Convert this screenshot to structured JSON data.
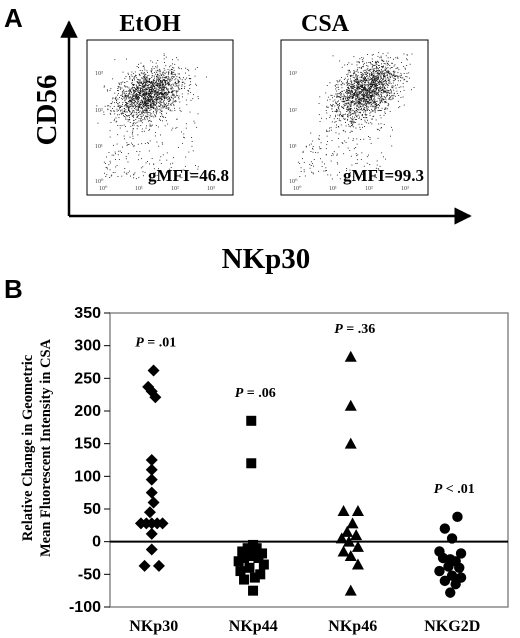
{
  "panel_a": {
    "letter": "A",
    "x_axis_label": "NKp30",
    "y_axis_label": "CD56",
    "plots": [
      {
        "condition": "EtOH",
        "gmfi_label": "gMFI=46.8",
        "x_ticks": [
          "10⁰",
          "10¹",
          "10²",
          "10³"
        ],
        "y_ticks": [
          "10⁰",
          "10¹",
          "10²",
          "10³"
        ]
      },
      {
        "condition": "CSA",
        "gmfi_label": "gMFI=99.3",
        "x_ticks": [
          "10⁰",
          "10¹",
          "10²",
          "10³"
        ],
        "y_ticks": [
          "10⁰",
          "10¹",
          "10²",
          "10³"
        ]
      }
    ]
  },
  "panel_b": {
    "letter": "B",
    "y_label_line1": "Relative Change in Geometric",
    "y_label_line2": "Mean Fluorescent Intensity in CSA"
  },
  "chart_data": [
    {
      "type": "scatter",
      "xlabel": "NKp30",
      "ylabel": "CD56",
      "title": "EtOH",
      "annotation": "gMFI=46.8",
      "x_scale": "log",
      "y_scale": "log",
      "xlim": [
        1,
        1000
      ],
      "ylim": [
        1,
        1000
      ],
      "note": "flow cytometry density scatter; dense cluster centered near x≈15, y≈100"
    },
    {
      "type": "scatter",
      "xlabel": "NKp30",
      "ylabel": "CD56",
      "title": "CSA",
      "annotation": "gMFI=99.3",
      "x_scale": "log",
      "y_scale": "log",
      "xlim": [
        1,
        1000
      ],
      "ylim": [
        1,
        1000
      ],
      "note": "flow cytometry density scatter; dense cluster centered near x≈60, y≈120"
    },
    {
      "type": "scatter",
      "title": "",
      "xlabel": "",
      "ylabel": "Relative Change in Geometric Mean Fluorescent Intensity in CSA",
      "categories": [
        "NKp30",
        "NKp44",
        "NKp46",
        "NKG2D"
      ],
      "ylim": [
        -100,
        350
      ],
      "yticks": [
        -100,
        -50,
        0,
        50,
        100,
        150,
        200,
        250,
        300,
        350
      ],
      "reference_line": 0,
      "grid": false,
      "series": [
        {
          "category": "NKp30",
          "marker": "diamond",
          "p_label": "P = .01",
          "points": [
            {
              "offset": 0.05,
              "value": 262
            },
            {
              "offset": -0.1,
              "value": 237
            },
            {
              "offset": 0.0,
              "value": 230
            },
            {
              "offset": 0.1,
              "value": 221
            },
            {
              "offset": 0.0,
              "value": 125
            },
            {
              "offset": 0.0,
              "value": 110
            },
            {
              "offset": 0.0,
              "value": 95
            },
            {
              "offset": 0.0,
              "value": 75
            },
            {
              "offset": 0.05,
              "value": 60
            },
            {
              "offset": -0.05,
              "value": 45
            },
            {
              "offset": -0.3,
              "value": 28
            },
            {
              "offset": -0.15,
              "value": 28
            },
            {
              "offset": 0.0,
              "value": 28
            },
            {
              "offset": 0.15,
              "value": 28
            },
            {
              "offset": 0.3,
              "value": 28
            },
            {
              "offset": 0.0,
              "value": 12
            },
            {
              "offset": 0.0,
              "value": -12
            },
            {
              "offset": -0.2,
              "value": -37
            },
            {
              "offset": 0.2,
              "value": -37
            }
          ]
        },
        {
          "category": "NKp44",
          "marker": "square",
          "p_label": "P = .06",
          "points": [
            {
              "offset": 0.0,
              "value": 185
            },
            {
              "offset": 0.0,
              "value": 120
            },
            {
              "offset": 0.05,
              "value": -5
            },
            {
              "offset": -0.25,
              "value": -15
            },
            {
              "offset": -0.1,
              "value": -10
            },
            {
              "offset": 0.15,
              "value": -10
            },
            {
              "offset": 0.3,
              "value": -18
            },
            {
              "offset": -0.35,
              "value": -30
            },
            {
              "offset": -0.2,
              "value": -25
            },
            {
              "offset": 0.0,
              "value": -22
            },
            {
              "offset": 0.2,
              "value": -25
            },
            {
              "offset": 0.35,
              "value": -35
            },
            {
              "offset": -0.3,
              "value": -45
            },
            {
              "offset": -0.05,
              "value": -40
            },
            {
              "offset": 0.1,
              "value": -55
            },
            {
              "offset": 0.25,
              "value": -50
            },
            {
              "offset": -0.2,
              "value": -58
            },
            {
              "offset": 0.05,
              "value": -75
            }
          ]
        },
        {
          "category": "NKp46",
          "marker": "triangle",
          "p_label": "P = .36",
          "points": [
            {
              "offset": 0.0,
              "value": 283
            },
            {
              "offset": 0.0,
              "value": 208
            },
            {
              "offset": 0.0,
              "value": 150
            },
            {
              "offset": -0.2,
              "value": 47
            },
            {
              "offset": 0.2,
              "value": 47
            },
            {
              "offset": 0.05,
              "value": 28
            },
            {
              "offset": -0.1,
              "value": 15
            },
            {
              "offset": 0.15,
              "value": 10
            },
            {
              "offset": -0.25,
              "value": 5
            },
            {
              "offset": -0.05,
              "value": 0
            },
            {
              "offset": 0.2,
              "value": -8
            },
            {
              "offset": -0.2,
              "value": -15
            },
            {
              "offset": 0.0,
              "value": -22
            },
            {
              "offset": 0.2,
              "value": -35
            },
            {
              "offset": 0.0,
              "value": -75
            }
          ]
        },
        {
          "category": "NKG2D",
          "marker": "circle",
          "p_label": "P < .01",
          "points": [
            {
              "offset": 0.2,
              "value": 38
            },
            {
              "offset": -0.15,
              "value": 20
            },
            {
              "offset": 0.05,
              "value": 5
            },
            {
              "offset": -0.3,
              "value": -15
            },
            {
              "offset": 0.3,
              "value": -18
            },
            {
              "offset": -0.2,
              "value": -25
            },
            {
              "offset": 0.0,
              "value": -27
            },
            {
              "offset": 0.15,
              "value": -30
            },
            {
              "offset": -0.05,
              "value": -38
            },
            {
              "offset": 0.25,
              "value": -40
            },
            {
              "offset": -0.3,
              "value": -45
            },
            {
              "offset": 0.05,
              "value": -52
            },
            {
              "offset": 0.3,
              "value": -55
            },
            {
              "offset": -0.15,
              "value": -60
            },
            {
              "offset": 0.15,
              "value": -65
            },
            {
              "offset": 0.0,
              "value": -78
            }
          ]
        }
      ]
    }
  ]
}
